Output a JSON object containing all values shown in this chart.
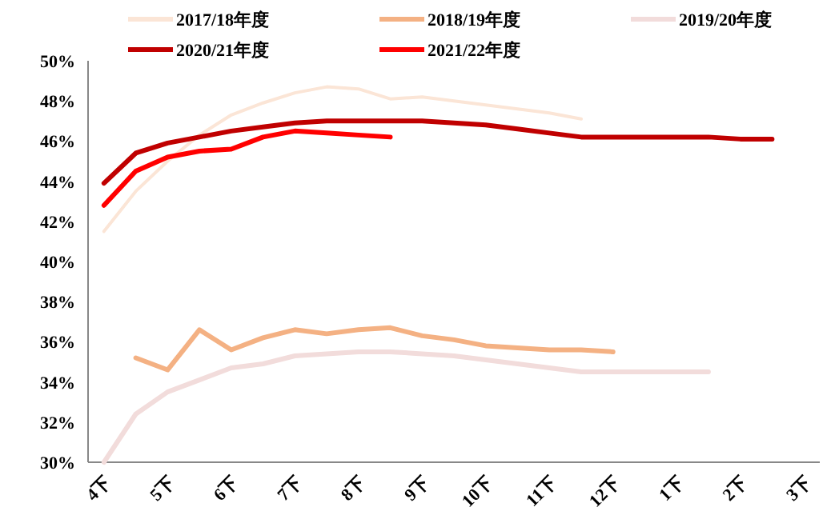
{
  "chart_data": {
    "type": "line",
    "categories": [
      "4下",
      null,
      "5下",
      null,
      "6下",
      null,
      "7下",
      null,
      "8下",
      null,
      "9下",
      null,
      "10下",
      null,
      "11下",
      null,
      "12下",
      null,
      "1下",
      null,
      "2下",
      null,
      "3下"
    ],
    "series": [
      {
        "name": "2017/18年度",
        "color": "#fbe5d6",
        "values": [
          41.5,
          43.5,
          45.0,
          46.3,
          47.3,
          47.9,
          48.4,
          48.7,
          48.6,
          48.1,
          48.2,
          48.0,
          47.8,
          47.6,
          47.4,
          47.1,
          null,
          null,
          null,
          null,
          null,
          null,
          null
        ]
      },
      {
        "name": "2018/19年度",
        "color": "#f4b183",
        "values": [
          null,
          35.2,
          34.6,
          36.6,
          35.6,
          36.2,
          36.6,
          36.4,
          36.6,
          36.7,
          36.3,
          36.1,
          35.8,
          35.7,
          35.6,
          35.6,
          35.5,
          null,
          null,
          null,
          null,
          null,
          null
        ]
      },
      {
        "name": "2019/20年度",
        "color": "#f2dcdb",
        "values": [
          30.0,
          32.4,
          33.5,
          34.1,
          34.7,
          34.9,
          35.3,
          35.4,
          35.5,
          35.5,
          35.4,
          35.3,
          35.1,
          34.9,
          34.7,
          34.5,
          34.5,
          34.5,
          34.5,
          34.5,
          null,
          null,
          null
        ]
      },
      {
        "name": "2020/21年度",
        "color": "#c00000",
        "values": [
          43.9,
          45.4,
          45.9,
          46.2,
          46.5,
          46.7,
          46.9,
          47.0,
          47.0,
          47.0,
          47.0,
          46.9,
          46.8,
          46.6,
          46.4,
          46.2,
          46.2,
          46.2,
          46.2,
          46.2,
          46.1,
          46.1,
          null
        ]
      },
      {
        "name": "2021/22年度",
        "color": "#ff0000",
        "values": [
          42.8,
          44.5,
          45.2,
          45.5,
          45.6,
          46.2,
          46.5,
          46.4,
          46.3,
          46.2,
          null,
          null,
          null,
          null,
          null,
          null,
          null,
          null,
          null,
          null,
          null,
          null,
          null
        ]
      }
    ],
    "ylim": [
      30,
      50
    ],
    "yticks": [
      {
        "value": 30,
        "label": "30%"
      },
      {
        "value": 32,
        "label": "32%"
      },
      {
        "value": 34,
        "label": "34%"
      },
      {
        "value": 36,
        "label": "36%"
      },
      {
        "value": 38,
        "label": "38%"
      },
      {
        "value": 40,
        "label": "40%"
      },
      {
        "value": 42,
        "label": "42%"
      },
      {
        "value": 44,
        "label": "44%"
      },
      {
        "value": 46,
        "label": "46%"
      },
      {
        "value": 48,
        "label": "48%"
      },
      {
        "value": 50,
        "label": "50%"
      }
    ],
    "legend": "top"
  }
}
